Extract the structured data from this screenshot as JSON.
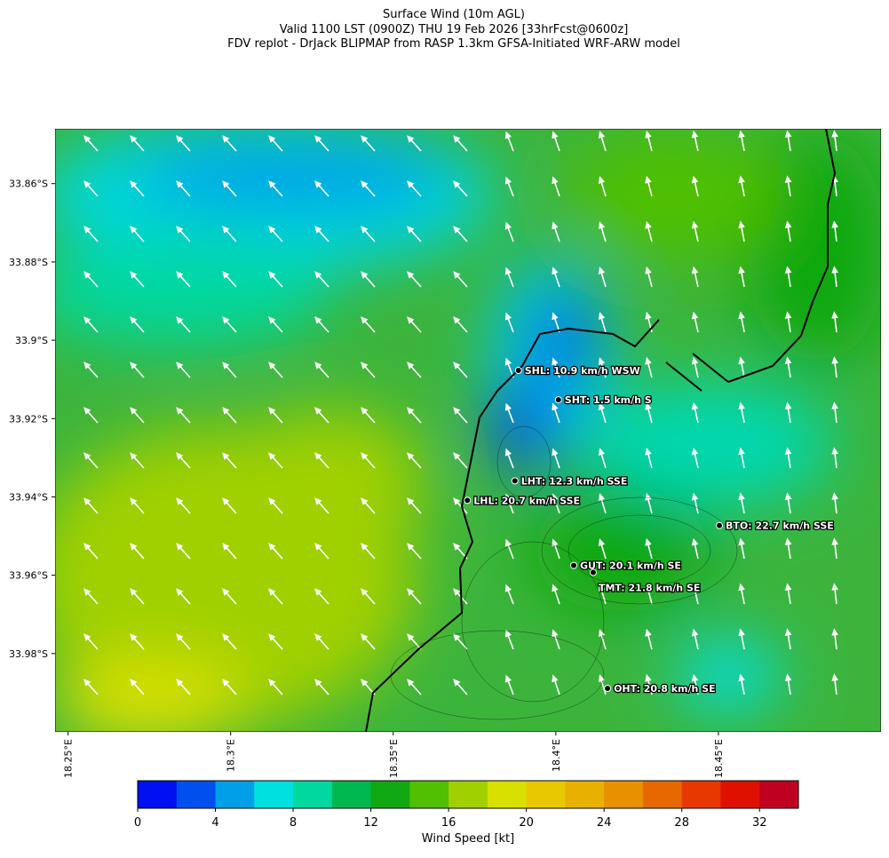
{
  "header": {
    "title_lines": [
      "Surface Wind (10m AGL)",
      "Valid 1100 LST (0900Z) THU 19 Feb 2026 [33hrFcst@0600z]",
      "FDV replot - DrJack BLIPMAP from RASP 1.3km GFSA-Initiated WRF-ARW model"
    ]
  },
  "map": {
    "lonlim": [
      18.246,
      18.5
    ],
    "latlim": [
      -34.0,
      -33.846
    ],
    "lat_ticks": [
      {
        "value": -33.86,
        "label": "33.86°S"
      },
      {
        "value": -33.88,
        "label": "33.88°S"
      },
      {
        "value": -33.9,
        "label": "33.9°S"
      },
      {
        "value": -33.92,
        "label": "33.92°S"
      },
      {
        "value": -33.94,
        "label": "33.94°S"
      },
      {
        "value": -33.96,
        "label": "33.96°S"
      },
      {
        "value": -33.98,
        "label": "33.98°S"
      }
    ],
    "lon_ticks": [
      {
        "value": 18.25,
        "label": "18.25°E"
      },
      {
        "value": 18.3,
        "label": "18.3°E"
      },
      {
        "value": 18.35,
        "label": "18.35°E"
      },
      {
        "value": 18.4,
        "label": "18.4°E"
      },
      {
        "value": 18.45,
        "label": "18.45°E"
      }
    ],
    "stations": [
      {
        "label": "SHL: 10.9 km/h WSW",
        "lon": 18.3885,
        "lat": -33.9077
      },
      {
        "label": "SHT: 1.5 km/h S",
        "lon": 18.4008,
        "lat": -33.9152
      },
      {
        "label": "LHT: 12.3 km/h SSE",
        "lon": 18.3874,
        "lat": -33.9359
      },
      {
        "label": "LHL: 20.7 km/h SSE",
        "lon": 18.3728,
        "lat": -33.9409
      },
      {
        "label": "BTO: 22.7 km/h SSE",
        "lon": 18.4503,
        "lat": -33.9473
      },
      {
        "label": "GUT: 20.1 km/h SE",
        "lon": 18.4055,
        "lat": -33.9575
      },
      {
        "label": "TMT: 21.8 km/h SE",
        "lon": 18.4115,
        "lat": -33.9593
      },
      {
        "label": "OHT: 20.8 km/h SE",
        "lon": 18.4159,
        "lat": -33.9889
      }
    ]
  },
  "colorbar": {
    "label": "Wind Speed [kt]",
    "lim": [
      0,
      34
    ],
    "ticks": [
      0,
      4,
      8,
      12,
      16,
      20,
      24,
      28,
      32
    ],
    "colors": [
      "#0010f0",
      "#0050f0",
      "#00a0e8",
      "#00e0e0",
      "#00d8a0",
      "#00b850",
      "#10a810",
      "#50c000",
      "#a0d000",
      "#d8e000",
      "#e8c800",
      "#e8b000",
      "#e89000",
      "#e86800",
      "#e83800",
      "#e01000",
      "#c00020"
    ]
  }
}
